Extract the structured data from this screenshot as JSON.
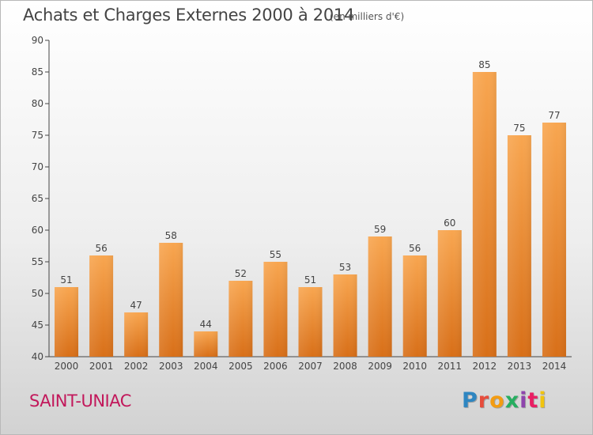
{
  "header": {
    "title": "Achats et Charges Externes 2000 à 2014",
    "unit": "(en milliers d'€)"
  },
  "footer": {
    "commune": "SAINT-UNIAC",
    "logo_letters": [
      {
        "ch": "P",
        "color": "#2e86c1"
      },
      {
        "ch": "r",
        "color": "#e74c3c"
      },
      {
        "ch": "o",
        "color": "#f39c12"
      },
      {
        "ch": "x",
        "color": "#27ae60"
      },
      {
        "ch": "i",
        "color": "#8e44ad"
      },
      {
        "ch": "t",
        "color": "#e91e63"
      },
      {
        "ch": "i",
        "color": "#f1c40f"
      }
    ]
  },
  "chart_data": {
    "type": "bar",
    "categories": [
      "2000",
      "2001",
      "2002",
      "2003",
      "2004",
      "2005",
      "2006",
      "2007",
      "2008",
      "2009",
      "2010",
      "2011",
      "2012",
      "2013",
      "2014"
    ],
    "values": [
      51,
      56,
      47,
      58,
      44,
      52,
      55,
      51,
      53,
      59,
      56,
      60,
      85,
      75,
      77
    ],
    "ylim": [
      40,
      90
    ],
    "yticks": [
      40,
      45,
      50,
      55,
      60,
      65,
      70,
      75,
      80,
      85,
      90
    ],
    "grid": false,
    "bar_color": "#f0943a",
    "title": "Achats et Charges Externes 2000 à 2014",
    "xlabel": "",
    "ylabel": ""
  }
}
